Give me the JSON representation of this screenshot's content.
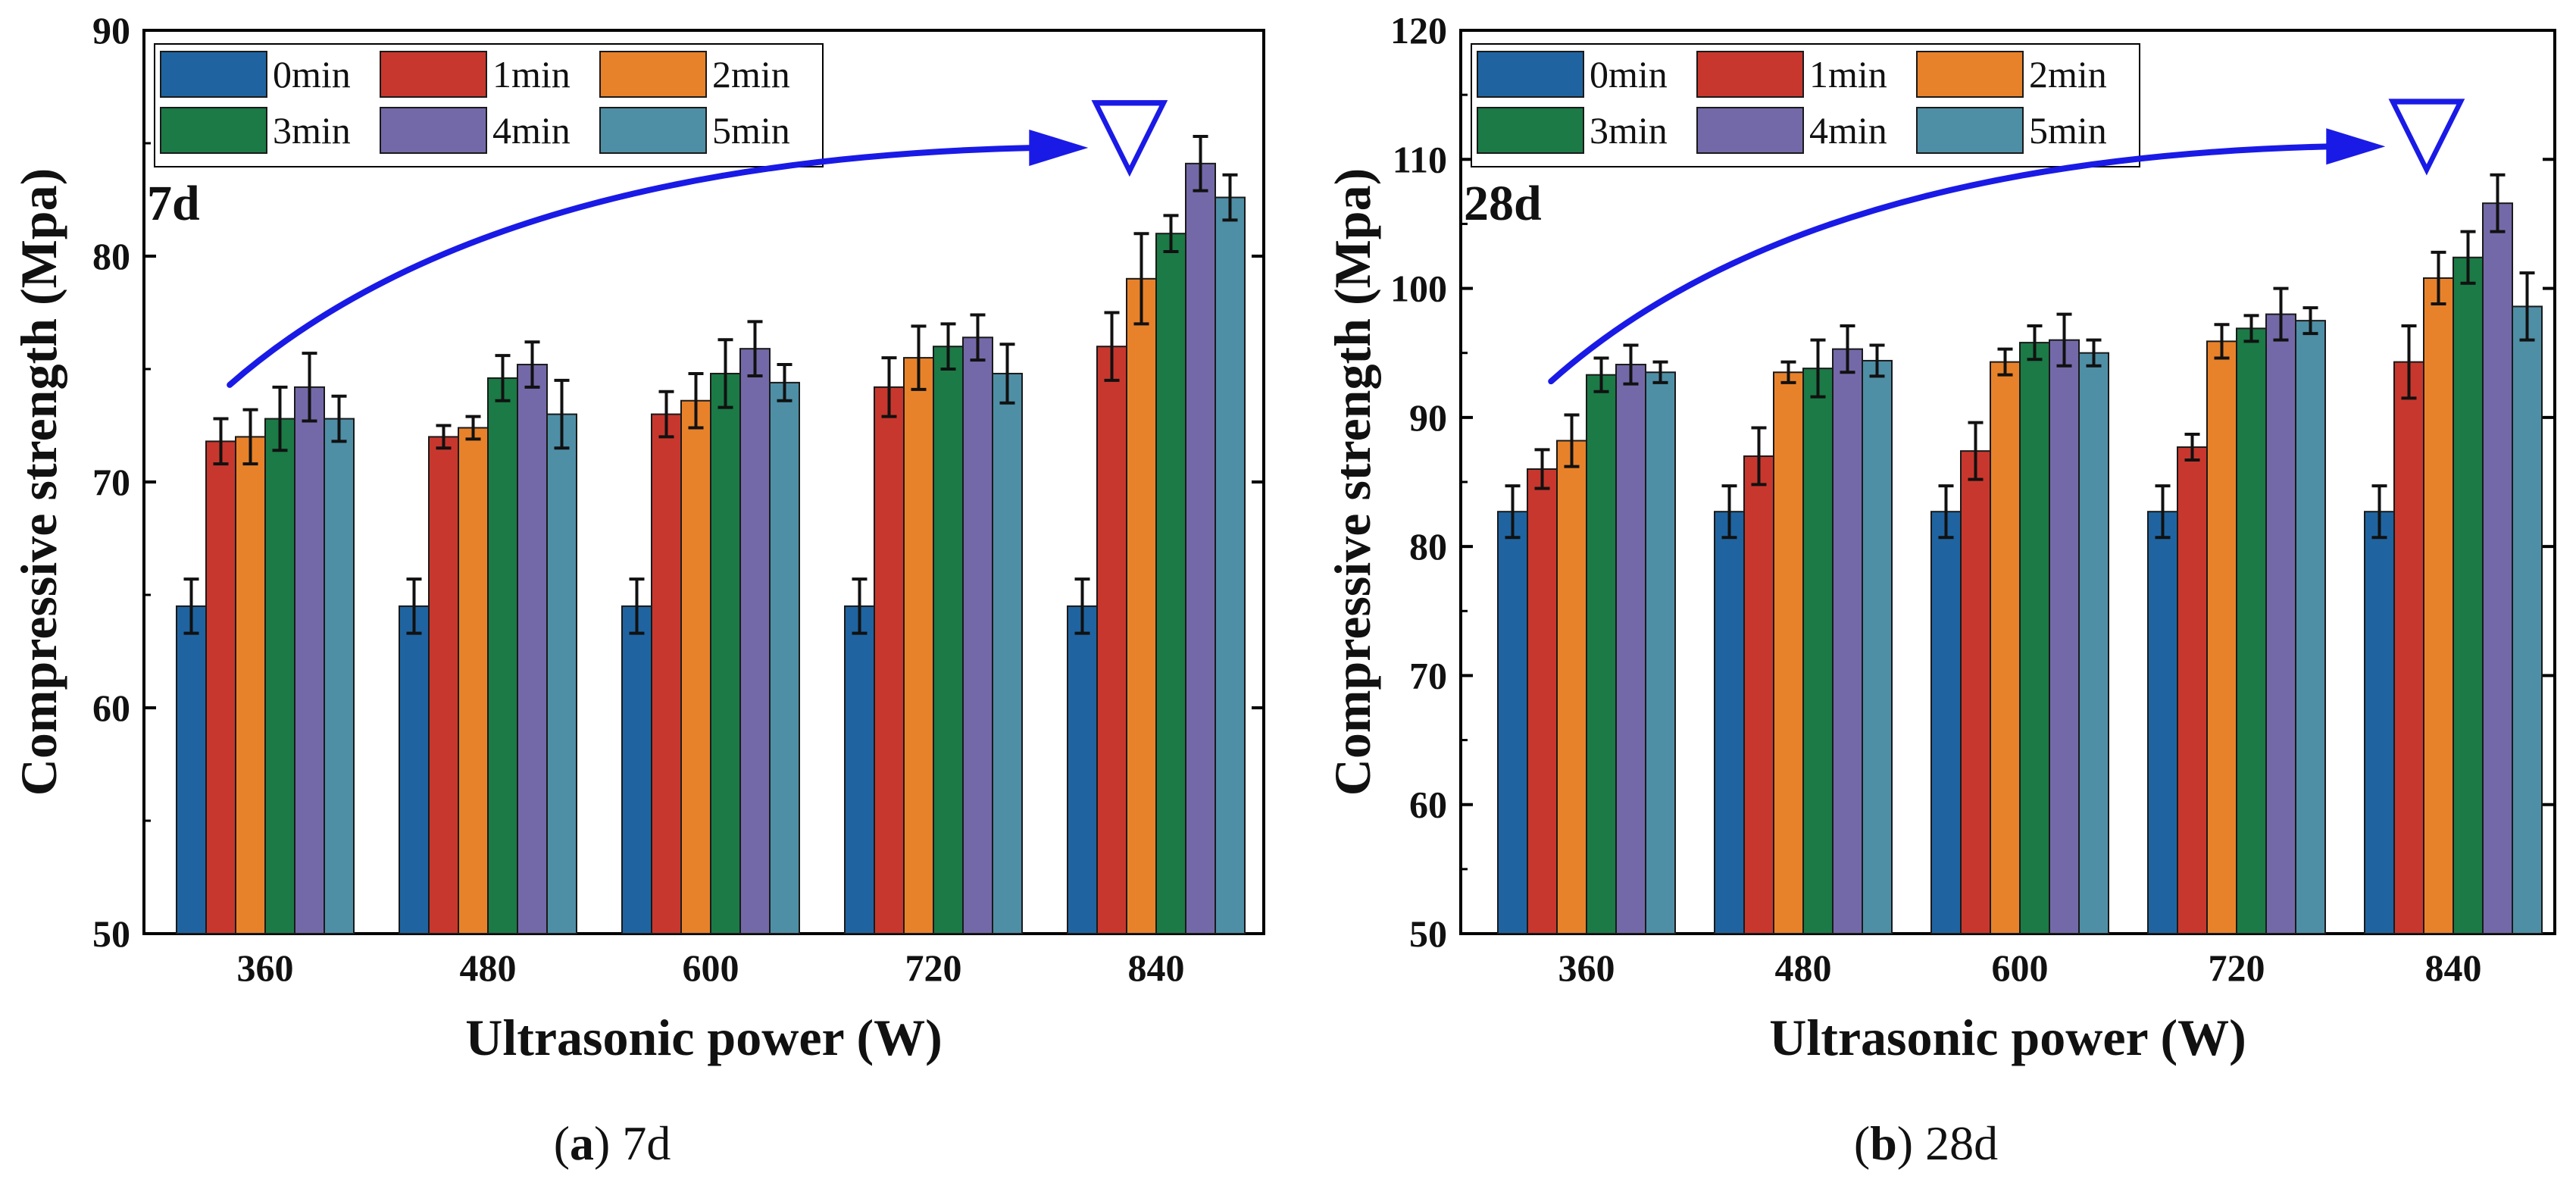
{
  "chart_data": [
    {
      "id": "a",
      "type": "bar",
      "panel_label": "7d",
      "caption_letter": "a",
      "caption_open": "(",
      "caption_close": ")",
      "caption_rest": " 7d",
      "xlabel": "Ultrasonic power (W)",
      "ylabel": "Compressive strength (Mpa)",
      "ylim": [
        50,
        90
      ],
      "yticks": [
        50,
        60,
        70,
        80,
        90
      ],
      "categories": [
        "360",
        "480",
        "600",
        "720",
        "840"
      ],
      "legend_position": "top-left",
      "series": [
        {
          "name": "0min",
          "color": "#1F64A0",
          "values": [
            64.5,
            64.5,
            64.5,
            64.5,
            64.5
          ],
          "errors": [
            1.2,
            1.2,
            1.2,
            1.2,
            1.2
          ]
        },
        {
          "name": "1min",
          "color": "#C8372D",
          "values": [
            71.8,
            72.0,
            73.0,
            74.2,
            76.0
          ],
          "errors": [
            1.0,
            0.5,
            1.0,
            1.3,
            1.5
          ]
        },
        {
          "name": "2min",
          "color": "#E8822A",
          "values": [
            72.0,
            72.4,
            73.6,
            75.5,
            79.0
          ],
          "errors": [
            1.2,
            0.5,
            1.2,
            1.4,
            2.0
          ]
        },
        {
          "name": "3min",
          "color": "#1B7A46",
          "values": [
            72.8,
            74.6,
            74.8,
            76.0,
            81.0
          ],
          "errors": [
            1.4,
            1.0,
            1.5,
            1.0,
            0.8
          ]
        },
        {
          "name": "4min",
          "color": "#7469A8",
          "values": [
            74.2,
            75.2,
            75.9,
            76.4,
            84.1
          ],
          "errors": [
            1.5,
            1.0,
            1.2,
            1.0,
            1.2
          ]
        },
        {
          "name": "5min",
          "color": "#4E8FA6",
          "values": [
            72.8,
            73.0,
            74.4,
            74.8,
            82.6
          ],
          "errors": [
            1.0,
            1.5,
            0.8,
            1.3,
            1.0
          ]
        }
      ],
      "annotation": {
        "type": "curved-arrow",
        "from": [
          "360",
          74.3
        ],
        "to": [
          "840",
          84.8
        ],
        "marker": "▽",
        "color": "#1A1AE6"
      }
    },
    {
      "id": "b",
      "type": "bar",
      "panel_label": "28d",
      "caption_letter": "b",
      "caption_open": "(",
      "caption_close": ")",
      "caption_rest": " 28d",
      "xlabel": "Ultrasonic power (W)",
      "ylabel": "Compressive strength (Mpa)",
      "ylim": [
        50,
        120
      ],
      "yticks": [
        50,
        60,
        70,
        80,
        90,
        100,
        110,
        120
      ],
      "categories": [
        "360",
        "480",
        "600",
        "720",
        "840"
      ],
      "legend_position": "top-left",
      "series": [
        {
          "name": "0min",
          "color": "#1F64A0",
          "values": [
            82.7,
            82.7,
            82.7,
            82.7,
            82.7
          ],
          "errors": [
            2.0,
            2.0,
            2.0,
            2.0,
            2.0
          ]
        },
        {
          "name": "1min",
          "color": "#C8372D",
          "values": [
            86.0,
            87.0,
            87.4,
            87.7,
            94.3
          ],
          "errors": [
            1.5,
            2.2,
            2.2,
            1.0,
            2.8
          ]
        },
        {
          "name": "2min",
          "color": "#E8822A",
          "values": [
            88.2,
            93.5,
            94.3,
            95.9,
            100.8
          ],
          "errors": [
            2.0,
            0.8,
            1.0,
            1.3,
            2.0
          ]
        },
        {
          "name": "3min",
          "color": "#1B7A46",
          "values": [
            93.3,
            93.8,
            95.8,
            96.9,
            102.4
          ],
          "errors": [
            1.3,
            2.2,
            1.3,
            1.0,
            2.0
          ]
        },
        {
          "name": "4min",
          "color": "#7469A8",
          "values": [
            94.1,
            95.3,
            96.0,
            98.0,
            106.6
          ],
          "errors": [
            1.5,
            1.8,
            2.0,
            2.0,
            2.2
          ]
        },
        {
          "name": "5min",
          "color": "#4E8FA6",
          "values": [
            93.5,
            94.4,
            95.0,
            97.5,
            98.6
          ],
          "errors": [
            0.8,
            1.2,
            1.0,
            1.0,
            2.6
          ]
        }
      ],
      "annotation": {
        "type": "curved-arrow",
        "from": [
          "360",
          92.8
        ],
        "to": [
          "840",
          111.0
        ],
        "marker": "▽",
        "color": "#1A1AE6"
      }
    }
  ]
}
